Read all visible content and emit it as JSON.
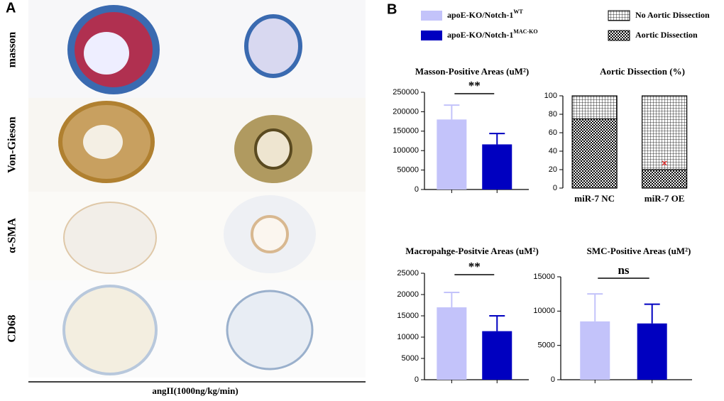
{
  "panel_a": {
    "letter": "A",
    "rows": [
      "masson",
      "Von-Gieson",
      "α-SMA",
      "CD68"
    ],
    "xlabel": "angII(1000ng/kg/min)"
  },
  "panel_b": {
    "letter": "B",
    "legend": [
      {
        "name": "apoE-KO/Notch-1",
        "sup": "WT",
        "color": "#c3c3fa"
      },
      {
        "name": "apoE-KO/Notch-1",
        "sup": "MAC-KO",
        "color": "#0000c0"
      }
    ]
  },
  "chart_data": [
    {
      "type": "bar",
      "title": "Masson-Positive Areas (uM²)",
      "categories": [
        null,
        null
      ],
      "values": [
        180000,
        116000
      ],
      "errors": [
        37000,
        28000
      ],
      "colors": [
        "#c3c3fa",
        "#0000c0"
      ],
      "ylim": [
        0,
        250000
      ],
      "yticks": [
        0,
        50000,
        100000,
        150000,
        200000,
        250000
      ],
      "annotation": "**"
    },
    {
      "type": "stacked",
      "title": "Aortic Dissection (%)",
      "categories": [
        "miR-7 NC",
        "miR-7 OE"
      ],
      "ylim": [
        0,
        100
      ],
      "yticks": [
        0,
        20,
        40,
        60,
        80,
        100
      ],
      "legend": "top-right",
      "series": [
        {
          "name": "Aortic Dissection",
          "color": "#000000",
          "pattern": "checker",
          "values": [
            75,
            20
          ]
        },
        {
          "name": "No Aortic Dissection",
          "color": "#000000",
          "pattern": "grid",
          "values": [
            25,
            80
          ]
        }
      ]
    },
    {
      "type": "bar",
      "title": "Macropahge-Positvie Areas (uM²)",
      "categories": [
        null,
        null
      ],
      "values": [
        17000,
        11400
      ],
      "errors": [
        3500,
        3600
      ],
      "colors": [
        "#c3c3fa",
        "#0000c0"
      ],
      "ylim": [
        0,
        25000
      ],
      "yticks": [
        0,
        5000,
        10000,
        15000,
        20000,
        25000
      ],
      "annotation": "**"
    },
    {
      "type": "bar",
      "title": "SMC-Positive Areas (uM²)",
      "categories": [
        null,
        null
      ],
      "values": [
        8500,
        8200
      ],
      "errors": [
        4000,
        2800
      ],
      "colors": [
        "#c3c3fa",
        "#0000c0"
      ],
      "ylim": [
        0,
        15000
      ],
      "yticks": [
        0,
        5000,
        10000,
        15000
      ],
      "annotation": "ns"
    }
  ]
}
